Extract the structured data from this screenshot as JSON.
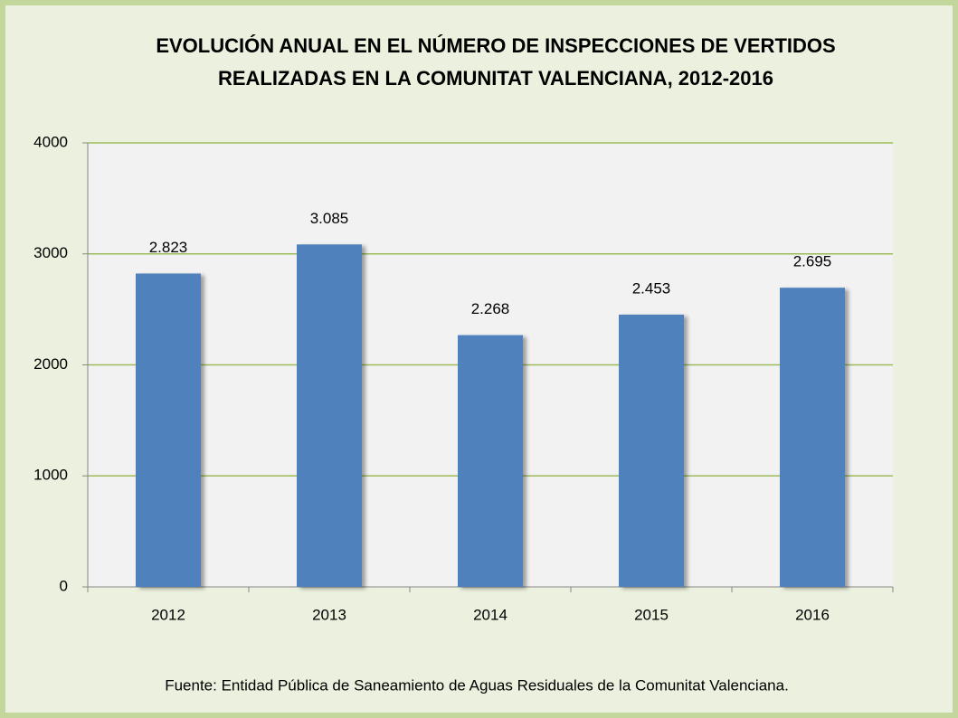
{
  "chart_data": {
    "type": "bar",
    "title": [
      "EVOLUCIÓN ANUAL EN EL NÚMERO DE INSPECCIONES DE VERTIDOS",
      "REALIZADAS EN LA COMUNITAT VALENCIANA, 2012-2016"
    ],
    "categories": [
      "2012",
      "2013",
      "2014",
      "2015",
      "2016"
    ],
    "values": [
      2823,
      3085,
      2268,
      2453,
      2695
    ],
    "value_labels": [
      "2.823",
      "3.085",
      "2.268",
      "2.453",
      "2.695"
    ],
    "color": "#4f81bd",
    "ylim": [
      0,
      4000
    ],
    "yticks": [
      0,
      1000,
      2000,
      3000,
      4000
    ],
    "grid": true,
    "source": "Fuente: Entidad Pública de Saneamiento de Aguas Residuales de la Comunitat Valenciana."
  }
}
